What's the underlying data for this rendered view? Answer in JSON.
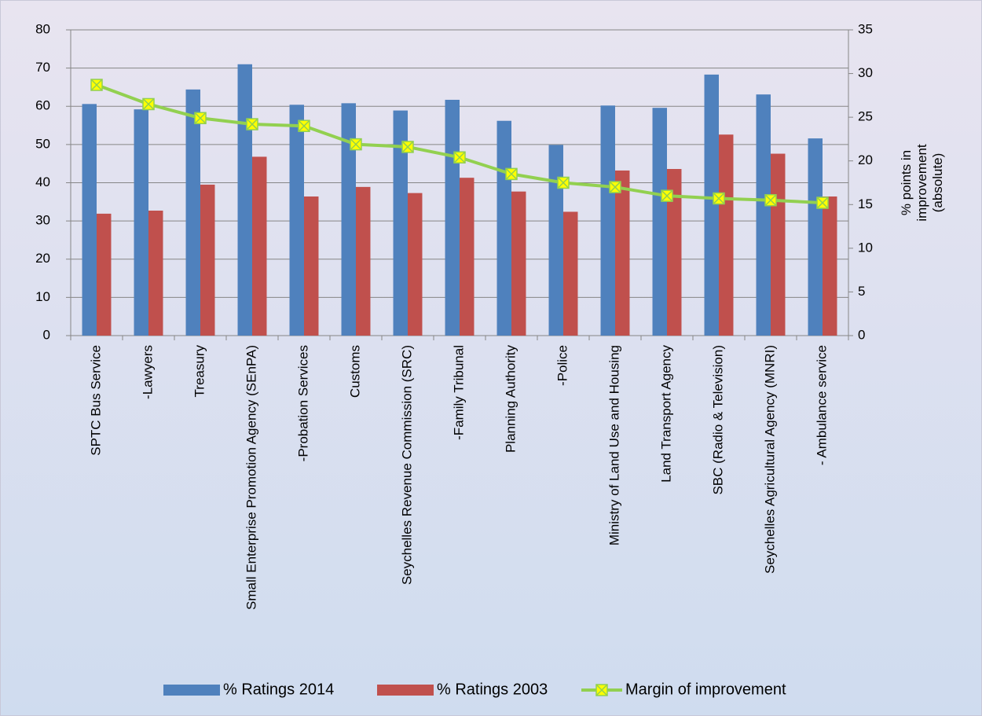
{
  "chart_data": {
    "type": "bar_line",
    "categories": [
      "SPTC Bus Service",
      "-Lawyers",
      "Treasury",
      "Small Enterprise Promotion Agency (SEnPA)",
      "-Probation Services",
      "Customs",
      "Seychelles Revenue Commission (SRC)",
      "-Family Tribunal",
      "Planning Authority",
      "-Police",
      "Ministry of Land Use and Housing",
      "Land Transport Agency",
      "SBC (Radio & Television)",
      "Seychelles Agricultural Agency (MNRI)",
      "- Ambulance service"
    ],
    "series": [
      {
        "name": "% Ratings 2014",
        "color": "#4f81bd",
        "type": "bar",
        "values": [
          60.6,
          59.2,
          64.4,
          71,
          60.4,
          60.8,
          58.9,
          61.7,
          56.2,
          49.9,
          60.2,
          59.6,
          68.3,
          63.1,
          51.6
        ]
      },
      {
        "name": "% Ratings 2003",
        "color": "#c0504d",
        "type": "bar",
        "values": [
          31.9,
          32.7,
          39.5,
          46.8,
          36.4,
          38.9,
          37.3,
          41.3,
          37.7,
          32.4,
          43.2,
          43.6,
          52.6,
          47.6,
          36.4
        ]
      },
      {
        "name": "Margin of improvement",
        "color": "#92d050",
        "marker_color": "#ffff00",
        "type": "line",
        "axis": "y2",
        "values": [
          28.7,
          26.5,
          24.9,
          24.2,
          24.0,
          21.9,
          21.6,
          20.4,
          18.5,
          17.5,
          17.0,
          16.0,
          15.7,
          15.5,
          15.2
        ]
      }
    ],
    "ylim": [
      0,
      80
    ],
    "yticks": [
      0,
      10,
      20,
      30,
      40,
      50,
      60,
      70,
      80
    ],
    "y2lim": [
      0,
      35
    ],
    "y2ticks": [
      0,
      5,
      10,
      15,
      20,
      25,
      30,
      35
    ],
    "y2_label": [
      "% points in",
      "improvement",
      "(absolute)"
    ],
    "grid": true,
    "legend": "bottom"
  }
}
